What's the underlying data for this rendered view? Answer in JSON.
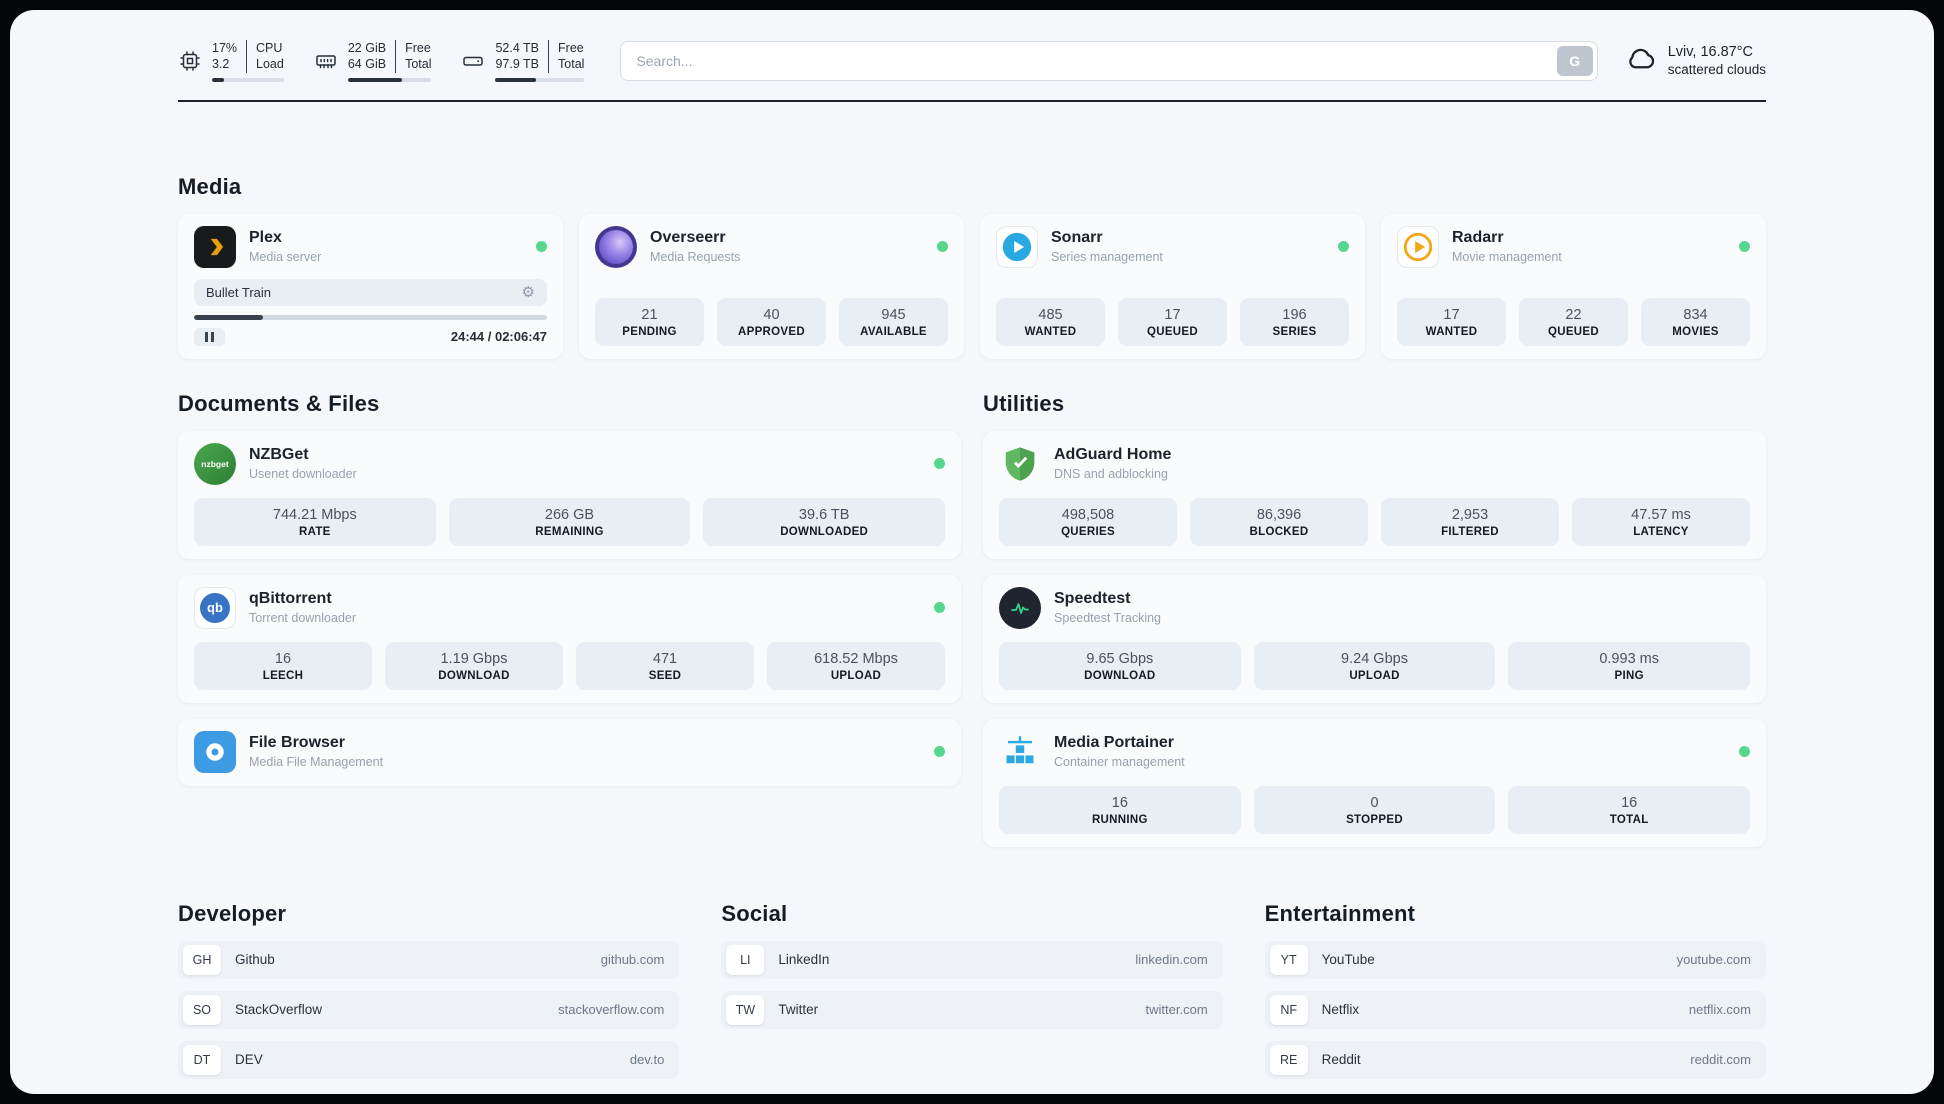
{
  "header": {
    "cpu": {
      "top_value": "17%",
      "bottom_value": "3.2",
      "top_label": "CPU",
      "bottom_label": "Load",
      "progress": 17
    },
    "ram": {
      "top_value": "22 GiB",
      "bottom_value": "64 GiB",
      "top_label": "Free",
      "bottom_label": "Total",
      "progress": 65
    },
    "disk": {
      "top_value": "52.4 TB",
      "bottom_value": "97.9 TB",
      "top_label": "Free",
      "bottom_label": "Total",
      "progress": 46
    },
    "search": {
      "placeholder": "Search...",
      "engine_label": "G"
    },
    "weather": {
      "location": "Lviv, 16.87°C",
      "condition": "scattered clouds"
    }
  },
  "icons": {
    "nzbget_label": "nzbget",
    "qbittorrent_label": "qb"
  },
  "sections": {
    "media": {
      "title": "Media",
      "plex": {
        "title": "Plex",
        "subtitle": "Media server",
        "now_playing": {
          "title": "Bullet Train",
          "time": "24:44 / 02:06:47",
          "progress": 19.5
        }
      },
      "overseerr": {
        "title": "Overseerr",
        "subtitle": "Media Requests",
        "stats": [
          {
            "value": "21",
            "label": "PENDING"
          },
          {
            "value": "40",
            "label": "APPROVED"
          },
          {
            "value": "945",
            "label": "AVAILABLE"
          }
        ]
      },
      "sonarr": {
        "title": "Sonarr",
        "subtitle": "Series management",
        "stats": [
          {
            "value": "485",
            "label": "WANTED"
          },
          {
            "value": "17",
            "label": "QUEUED"
          },
          {
            "value": "196",
            "label": "SERIES"
          }
        ]
      },
      "radarr": {
        "title": "Radarr",
        "subtitle": "Movie management",
        "stats": [
          {
            "value": "17",
            "label": "WANTED"
          },
          {
            "value": "22",
            "label": "QUEUED"
          },
          {
            "value": "834",
            "label": "MOVIES"
          }
        ]
      }
    },
    "documents": {
      "title": "Documents & Files",
      "nzbget": {
        "title": "NZBGet",
        "subtitle": "Usenet downloader",
        "stats": [
          {
            "value": "744.21 Mbps",
            "label": "RATE"
          },
          {
            "value": "266 GB",
            "label": "REMAINING"
          },
          {
            "value": "39.6 TB",
            "label": "DOWNLOADED"
          }
        ]
      },
      "qbittorrent": {
        "title": "qBittorrent",
        "subtitle": "Torrent downloader",
        "stats": [
          {
            "value": "16",
            "label": "LEECH"
          },
          {
            "value": "1.19 Gbps",
            "label": "DOWNLOAD"
          },
          {
            "value": "471",
            "label": "SEED"
          },
          {
            "value": "618.52 Mbps",
            "label": "UPLOAD"
          }
        ]
      },
      "filebrowser": {
        "title": "File Browser",
        "subtitle": "Media File Management"
      }
    },
    "utilities": {
      "title": "Utilities",
      "adguard": {
        "title": "AdGuard Home",
        "subtitle": "DNS and adblocking",
        "stats": [
          {
            "value": "498,508",
            "label": "QUERIES"
          },
          {
            "value": "86,396",
            "label": "BLOCKED"
          },
          {
            "value": "2,953",
            "label": "FILTERED"
          },
          {
            "value": "47.57 ms",
            "label": "LATENCY"
          }
        ]
      },
      "speedtest": {
        "title": "Speedtest",
        "subtitle": "Speedtest Tracking",
        "stats": [
          {
            "value": "9.65 Gbps",
            "label": "DOWNLOAD"
          },
          {
            "value": "9.24 Gbps",
            "label": "UPLOAD"
          },
          {
            "value": "0.993 ms",
            "label": "PING"
          }
        ]
      },
      "portainer": {
        "title": "Media Portainer",
        "subtitle": "Container management",
        "stats": [
          {
            "value": "16",
            "label": "RUNNING"
          },
          {
            "value": "0",
            "label": "STOPPED"
          },
          {
            "value": "16",
            "label": "TOTAL"
          }
        ]
      }
    },
    "bookmarks": [
      {
        "title": "Developer",
        "links": [
          {
            "abbr": "GH",
            "name": "Github",
            "url": "github.com"
          },
          {
            "abbr": "SO",
            "name": "StackOverflow",
            "url": "stackoverflow.com"
          },
          {
            "abbr": "DT",
            "name": "DEV",
            "url": "dev.to"
          }
        ]
      },
      {
        "title": "Social",
        "links": [
          {
            "abbr": "LI",
            "name": "LinkedIn",
            "url": "linkedin.com"
          },
          {
            "abbr": "TW",
            "name": "Twitter",
            "url": "twitter.com"
          }
        ]
      },
      {
        "title": "Entertainment",
        "links": [
          {
            "abbr": "YT",
            "name": "YouTube",
            "url": "youtube.com"
          },
          {
            "abbr": "NF",
            "name": "Netflix",
            "url": "netflix.com"
          },
          {
            "abbr": "RE",
            "name": "Reddit",
            "url": "reddit.com"
          }
        ]
      }
    ]
  },
  "colors": {
    "accent_green": "#57d78e",
    "plex_yellow": "#e5a00d",
    "divider": "#1d2229",
    "page_bg": "#f5f7fa"
  }
}
